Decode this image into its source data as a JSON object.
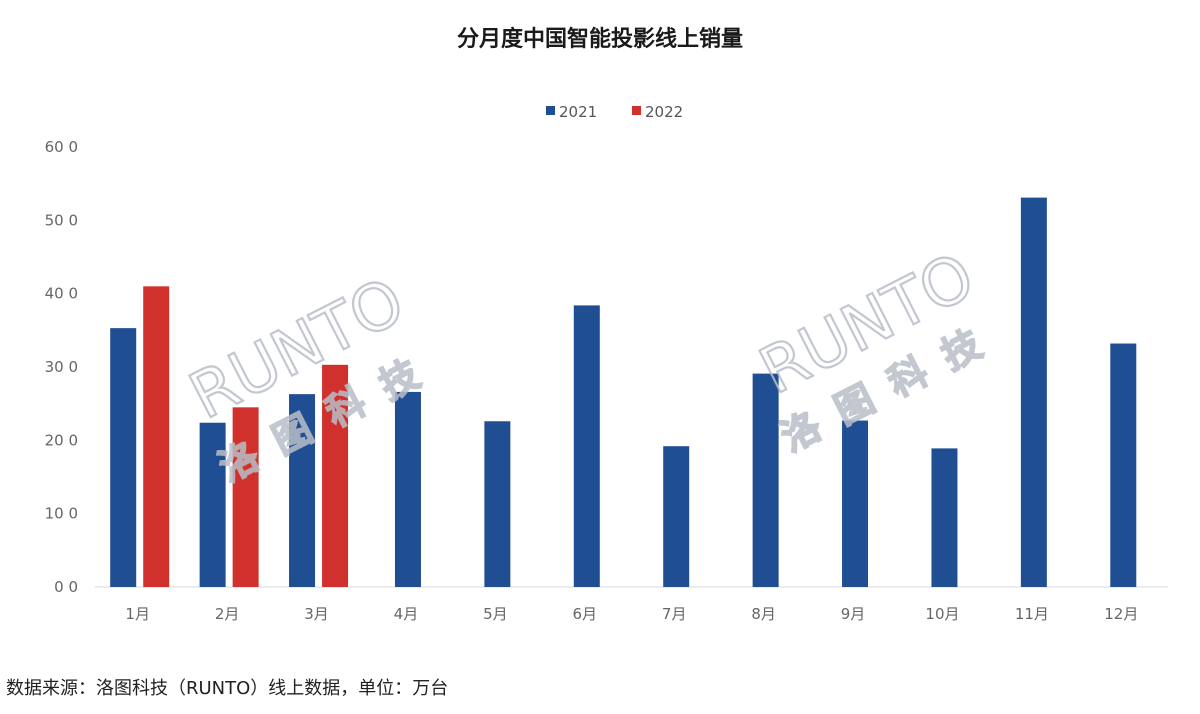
{
  "chart_data": {
    "type": "bar",
    "title": "分月度中国智能投影线上销量",
    "categories": [
      "1月",
      "2月",
      "3月",
      "4月",
      "5月",
      "6月",
      "7月",
      "8月",
      "9月",
      "10月",
      "11月",
      "12月"
    ],
    "series": [
      {
        "name": "2021",
        "color": "#1f4e93",
        "values": [
          35.3,
          22.4,
          26.3,
          26.6,
          22.6,
          38.4,
          19.2,
          29.1,
          22.7,
          18.9,
          53.1,
          33.2
        ]
      },
      {
        "name": "2022",
        "color": "#d0312d",
        "values": [
          41.0,
          24.5,
          30.3,
          null,
          null,
          null,
          null,
          null,
          null,
          null,
          null,
          null
        ]
      }
    ],
    "ylim": [
      0,
      60
    ],
    "yticks": [
      "0 0",
      "10 0",
      "20 0",
      "30 0",
      "40 0",
      "50 0",
      "60 0"
    ],
    "xlabel": "",
    "ylabel": "",
    "grid": false,
    "legend_position": "top-center"
  },
  "source_note": "数据来源：洛图科技（RUNTO）线上数据，单位：万台",
  "watermark": {
    "brand": "RUNTO",
    "cn": "洛图科技"
  }
}
